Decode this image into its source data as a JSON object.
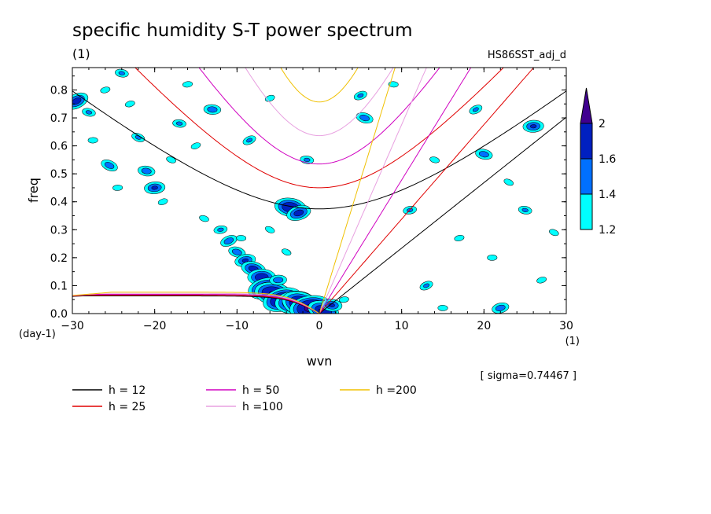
{
  "header": {
    "title": "specific humidity S-T power spectrum",
    "subtitle_left": "(1)",
    "subtitle_right": "HS86SST_adj_d",
    "sigma_note": "[ sigma=0.74467 ]"
  },
  "colors": {
    "h12": "#000000",
    "h25": "#e00000",
    "h50": "#d000c0",
    "h100": "#e8a0e0",
    "h200": "#f0c000",
    "fill_1_2": "#00ffff",
    "fill_1_4": "#0070ff",
    "fill_1_6": "#0020c0",
    "fill_2": "#400090"
  },
  "chart_data": {
    "type": "contour",
    "xlabel": "wvn",
    "ylabel": "freq",
    "xunit": "(1)",
    "yunit": "(day-1)",
    "xlim": [
      -30,
      30
    ],
    "ylim": [
      0,
      0.88
    ],
    "xticks": [
      -30,
      -20,
      -10,
      0,
      10,
      20,
      30
    ],
    "yticks": [
      0.0,
      0.1,
      0.2,
      0.3,
      0.4,
      0.5,
      0.6,
      0.7,
      0.8
    ],
    "ytick_labels": [
      "0.0",
      "0.1",
      "0.2",
      "0.3",
      "0.4",
      "0.5",
      "0.6",
      "0.7",
      "0.8"
    ],
    "xtick_labels": [
      "-30",
      "-20",
      "-10",
      "0",
      "10",
      "20",
      "30"
    ],
    "colorbar": {
      "levels": [
        1.2,
        1.4,
        1.6,
        2
      ],
      "labels": [
        "1.2",
        "1.4",
        "1.6",
        "2"
      ],
      "colors": [
        "#00ffff",
        "#0070ff",
        "#0020c0",
        "#400090"
      ]
    },
    "series": [
      {
        "name": "h = 12",
        "h": 12,
        "color": "#000000"
      },
      {
        "name": "h = 25",
        "h": 25,
        "color": "#e00000"
      },
      {
        "name": "h = 50",
        "h": 50,
        "color": "#d000c0"
      },
      {
        "name": "h =100",
        "h": 100,
        "color": "#e8a0e0"
      },
      {
        "name": "h =200",
        "h": 200,
        "color": "#f0c000"
      }
    ],
    "power_blobs": [
      {
        "k": -29.5,
        "f": 0.76,
        "v": 1.7
      },
      {
        "k": -28,
        "f": 0.72,
        "v": 1.4
      },
      {
        "k": -27.5,
        "f": 0.62,
        "v": 1.3
      },
      {
        "k": -26,
        "f": 0.8,
        "v": 1.3
      },
      {
        "k": -25.5,
        "f": 0.53,
        "v": 1.5
      },
      {
        "k": -24,
        "f": 0.86,
        "v": 1.4
      },
      {
        "k": -24.5,
        "f": 0.45,
        "v": 1.3
      },
      {
        "k": -23,
        "f": 0.75,
        "v": 1.3
      },
      {
        "k": -22,
        "f": 0.63,
        "v": 1.4
      },
      {
        "k": -21,
        "f": 0.51,
        "v": 1.5
      },
      {
        "k": -20,
        "f": 0.45,
        "v": 1.6
      },
      {
        "k": -19,
        "f": 0.4,
        "v": 1.3
      },
      {
        "k": -18,
        "f": 0.55,
        "v": 1.3
      },
      {
        "k": -17,
        "f": 0.68,
        "v": 1.4
      },
      {
        "k": -16,
        "f": 0.82,
        "v": 1.3
      },
      {
        "k": -15,
        "f": 0.6,
        "v": 1.3
      },
      {
        "k": -14,
        "f": 0.34,
        "v": 1.3
      },
      {
        "k": -13,
        "f": 0.73,
        "v": 1.5
      },
      {
        "k": -12,
        "f": 0.3,
        "v": 1.4
      },
      {
        "k": -11,
        "f": 0.26,
        "v": 1.5
      },
      {
        "k": -10,
        "f": 0.22,
        "v": 1.5
      },
      {
        "k": -9.5,
        "f": 0.27,
        "v": 1.3
      },
      {
        "k": -9,
        "f": 0.19,
        "v": 1.6
      },
      {
        "k": -8.5,
        "f": 0.62,
        "v": 1.4
      },
      {
        "k": -8,
        "f": 0.16,
        "v": 1.7
      },
      {
        "k": -7,
        "f": 0.13,
        "v": 1.8
      },
      {
        "k": -6.5,
        "f": 0.09,
        "v": 2.0
      },
      {
        "k": -6,
        "f": 0.3,
        "v": 1.3
      },
      {
        "k": -5.5,
        "f": 0.07,
        "v": 2.1
      },
      {
        "k": -5,
        "f": 0.12,
        "v": 1.5
      },
      {
        "k": -4.5,
        "f": 0.05,
        "v": 2.1
      },
      {
        "k": -4,
        "f": 0.22,
        "v": 1.3
      },
      {
        "k": -3.5,
        "f": 0.38,
        "v": 1.9
      },
      {
        "k": -3,
        "f": 0.04,
        "v": 2.1
      },
      {
        "k": -2.5,
        "f": 0.36,
        "v": 1.7
      },
      {
        "k": -2,
        "f": 0.03,
        "v": 2.2
      },
      {
        "k": -1.5,
        "f": 0.55,
        "v": 1.4
      },
      {
        "k": -1,
        "f": 0.02,
        "v": 2.2
      },
      {
        "k": -6,
        "f": 0.77,
        "v": 1.3
      },
      {
        "k": 0.5,
        "f": 0.01,
        "v": 1.9
      },
      {
        "k": 1.5,
        "f": 0.03,
        "v": 1.6
      },
      {
        "k": 3,
        "f": 0.05,
        "v": 1.3
      },
      {
        "k": 5,
        "f": 0.78,
        "v": 1.4
      },
      {
        "k": 5.5,
        "f": 0.7,
        "v": 1.5
      },
      {
        "k": 9,
        "f": 0.82,
        "v": 1.3
      },
      {
        "k": 11,
        "f": 0.37,
        "v": 1.4
      },
      {
        "k": 13,
        "f": 0.1,
        "v": 1.4
      },
      {
        "k": 14,
        "f": 0.55,
        "v": 1.3
      },
      {
        "k": 15,
        "f": 0.02,
        "v": 1.3
      },
      {
        "k": 17,
        "f": 0.27,
        "v": 1.3
      },
      {
        "k": 19,
        "f": 0.73,
        "v": 1.4
      },
      {
        "k": 20,
        "f": 0.57,
        "v": 1.5
      },
      {
        "k": 21,
        "f": 0.2,
        "v": 1.3
      },
      {
        "k": 22,
        "f": 0.02,
        "v": 1.5
      },
      {
        "k": 23,
        "f": 0.47,
        "v": 1.3
      },
      {
        "k": 25,
        "f": 0.37,
        "v": 1.4
      },
      {
        "k": 26,
        "f": 0.67,
        "v": 1.6
      },
      {
        "k": 27,
        "f": 0.12,
        "v": 1.3
      },
      {
        "k": 28.5,
        "f": 0.29,
        "v": 1.3
      }
    ]
  }
}
